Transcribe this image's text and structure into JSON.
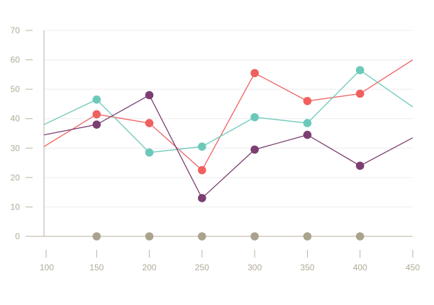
{
  "chart_data": {
    "type": "line",
    "title": "",
    "xlabel": "",
    "ylabel": "",
    "xlim": [
      100,
      450
    ],
    "ylim": [
      0,
      70
    ],
    "x_ticks": [
      "100",
      "150",
      "200",
      "250",
      "300",
      "350",
      "400",
      "450"
    ],
    "y_ticks": [
      "0",
      "10",
      "20",
      "30",
      "40",
      "50",
      "60",
      "70"
    ],
    "grid": "horizontal",
    "legend": "none",
    "axis_color": "#b8b2a0",
    "tick_label_color": "#b0aa96",
    "series": [
      {
        "color": "#f0605f",
        "x": [
          100,
          150,
          200,
          250,
          300,
          350,
          400,
          450
        ],
        "y": [
          30.5,
          41.5,
          38.5,
          22.5,
          55.5,
          46,
          48.5,
          60
        ],
        "markers": [
          false,
          true,
          true,
          true,
          true,
          true,
          true,
          false
        ]
      },
      {
        "color": "#6cc9ba",
        "x": [
          100,
          150,
          200,
          250,
          300,
          350,
          400,
          450
        ],
        "y": [
          38,
          46.5,
          28.5,
          30.5,
          40.5,
          38.5,
          56.5,
          44
        ],
        "markers": [
          false,
          true,
          true,
          true,
          true,
          true,
          true,
          false
        ]
      },
      {
        "color": "#7b3f72",
        "x": [
          100,
          150,
          200,
          250,
          300,
          350,
          400,
          450
        ],
        "y": [
          34.5,
          38,
          48,
          13,
          29.5,
          34.5,
          24,
          33.5
        ],
        "markers": [
          false,
          true,
          true,
          true,
          true,
          true,
          true,
          false
        ]
      },
      {
        "color": "#a9a38e",
        "x": [
          150,
          200,
          250,
          300,
          350,
          400
        ],
        "y": [
          0,
          0,
          0,
          0,
          0,
          0
        ],
        "markers": [
          true,
          true,
          true,
          true,
          true,
          true
        ],
        "line": false
      }
    ]
  }
}
